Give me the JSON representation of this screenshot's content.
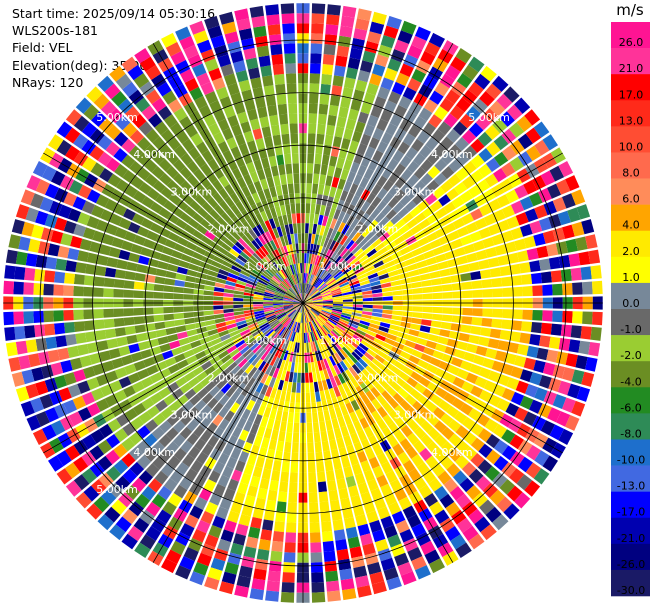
{
  "header": {
    "start_time": "Start time: 2025/09/14 05:30:16",
    "site": "WLS200s-181",
    "field": "Field: VEL",
    "elevation": "Elevation(deg): 35.00",
    "nrays": "NRays: 120"
  },
  "chart_data": {
    "type": "heatmap",
    "projection": "polar (PPI)",
    "field": "VEL",
    "units": "m/s",
    "n_rays": 120,
    "elevation_deg": 35.0,
    "range_rings_km": [
      1.0,
      2.0,
      3.0,
      4.0,
      5.0
    ],
    "ring_labels": [
      "1.00km",
      "2.00km",
      "3.00km",
      "4.00km",
      "5.00km"
    ],
    "max_range_km": 5.7,
    "spokes_deg": [
      0,
      30,
      60,
      90,
      120,
      150,
      180,
      210,
      240,
      270,
      300,
      330
    ],
    "colorbar": {
      "label": "m/s",
      "ticks": [
        "26.0",
        "21.0",
        "17.0",
        "13.0",
        "10.0",
        "8.0",
        "6.0",
        "4.0",
        "2.0",
        "1.0",
        "0.0",
        "-1.0",
        "-2.0",
        "-4.0",
        "-6.0",
        "-8.0",
        "-10.0",
        "-13.0",
        "-17.0",
        "-21.0",
        "-26.0",
        "-30.0"
      ],
      "bins": [
        {
          "from": 26.0,
          "to": 30.0,
          "color": "#ff1493"
        },
        {
          "from": 21.0,
          "to": 26.0,
          "color": "#ff3399"
        },
        {
          "from": 17.0,
          "to": 21.0,
          "color": "#ff0000"
        },
        {
          "from": 13.0,
          "to": 17.0,
          "color": "#ff2a1a"
        },
        {
          "from": 10.0,
          "to": 13.0,
          "color": "#ff4d33"
        },
        {
          "from": 8.0,
          "to": 10.0,
          "color": "#ff6a4d"
        },
        {
          "from": 6.0,
          "to": 8.0,
          "color": "#ff8c5a"
        },
        {
          "from": 4.0,
          "to": 6.0,
          "color": "#ffa500"
        },
        {
          "from": 2.0,
          "to": 4.0,
          "color": "#ffea00"
        },
        {
          "from": 1.0,
          "to": 2.0,
          "color": "#ffff00"
        },
        {
          "from": 0.0,
          "to": 1.0,
          "color": "#778899"
        },
        {
          "from": -1.0,
          "to": 0.0,
          "color": "#696969"
        },
        {
          "from": -2.0,
          "to": -1.0,
          "color": "#9acd32"
        },
        {
          "from": -4.0,
          "to": -2.0,
          "color": "#6b8e23"
        },
        {
          "from": -6.0,
          "to": -4.0,
          "color": "#228b22"
        },
        {
          "from": -8.0,
          "to": -6.0,
          "color": "#2e8b57"
        },
        {
          "from": -10.0,
          "to": -8.0,
          "color": "#1e6fcc"
        },
        {
          "from": -13.0,
          "to": -10.0,
          "color": "#4169e1"
        },
        {
          "from": -17.0,
          "to": -13.0,
          "color": "#0000ff"
        },
        {
          "from": -21.0,
          "to": -17.0,
          "color": "#0000b0"
        },
        {
          "from": -26.0,
          "to": -21.0,
          "color": "#000080"
        },
        {
          "from": -30.0,
          "to": -26.0,
          "color": "#1a1a66"
        }
      ]
    }
  }
}
